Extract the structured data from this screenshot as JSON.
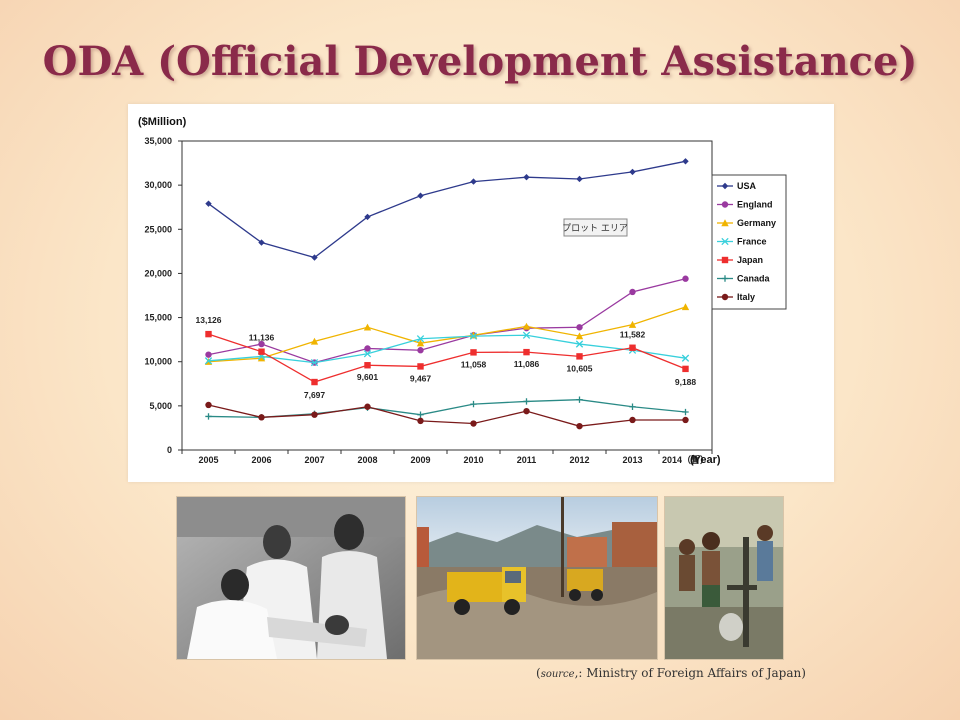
{
  "slide": {
    "title": "ODA (Official Development Assistance)",
    "source_prefix": "(",
    "source_label": "source",
    "source_colon": ",: ",
    "source_text": "Ministry of Foreign Affairs of Japan)"
  },
  "photos": [
    {
      "name": "doctors-treating-patient-photo"
    },
    {
      "name": "construction-truck-photo"
    },
    {
      "name": "children-at-water-pump-photo"
    }
  ],
  "chart_data": {
    "type": "line",
    "ylabel": "($Million)",
    "xlabel": "(Year)",
    "x": [
      "2005",
      "2006",
      "2007",
      "2008",
      "2009",
      "2010",
      "2011",
      "2012",
      "2013",
      "2014"
    ],
    "x_tick_labels": [
      "2005",
      "2006",
      "2007",
      "2008",
      "2009",
      "2010",
      "2011",
      "2012",
      "2013",
      "2014（暫）"
    ],
    "ylim": [
      0,
      35000
    ],
    "yticks": [
      0,
      5000,
      10000,
      15000,
      20000,
      25000,
      30000,
      35000
    ],
    "ytick_labels": [
      "0",
      "5,000",
      "10,000",
      "15,000",
      "20,000",
      "25,000",
      "30,000",
      "35,000"
    ],
    "grid": false,
    "legend_position": "right",
    "plot_area_tag": "プロット エリア",
    "series": [
      {
        "name": "USA",
        "color": "#2e3a8c",
        "marker": "diamond",
        "values": [
          27900,
          23500,
          21800,
          26400,
          28800,
          30400,
          30900,
          30700,
          31500,
          32700
        ]
      },
      {
        "name": "England",
        "color": "#9a3aa0",
        "marker": "dot",
        "values": [
          10800,
          12000,
          9900,
          11500,
          11300,
          13000,
          13800,
          13900,
          17900,
          19400
        ]
      },
      {
        "name": "Germany",
        "color": "#f0b400",
        "marker": "triangle",
        "values": [
          10000,
          10400,
          12300,
          13900,
          12100,
          13000,
          14000,
          12900,
          14200,
          16200
        ]
      },
      {
        "name": "France",
        "color": "#38d0dc",
        "marker": "x",
        "values": [
          10100,
          10600,
          9900,
          10900,
          12600,
          12900,
          13000,
          12000,
          11300,
          10400
        ]
      },
      {
        "name": "Japan",
        "color": "#ee2e2e",
        "marker": "square",
        "values": [
          13126,
          11136,
          7697,
          9601,
          9467,
          11058,
          11086,
          10605,
          11582,
          9188
        ],
        "labels": [
          "13,126",
          "11,136",
          "7,697",
          "9,601",
          "9,467",
          "11,058",
          "11,086",
          "10,605",
          "11,582",
          "9,188"
        ]
      },
      {
        "name": "Canada",
        "color": "#2a8a86",
        "marker": "plus",
        "values": [
          3800,
          3700,
          4100,
          4800,
          4000,
          5200,
          5500,
          5700,
          4900,
          4300
        ]
      },
      {
        "name": "Italy",
        "color": "#7a1a1a",
        "marker": "dot",
        "values": [
          5100,
          3700,
          4000,
          4900,
          3300,
          3000,
          4400,
          2700,
          3400,
          3400
        ]
      }
    ]
  }
}
